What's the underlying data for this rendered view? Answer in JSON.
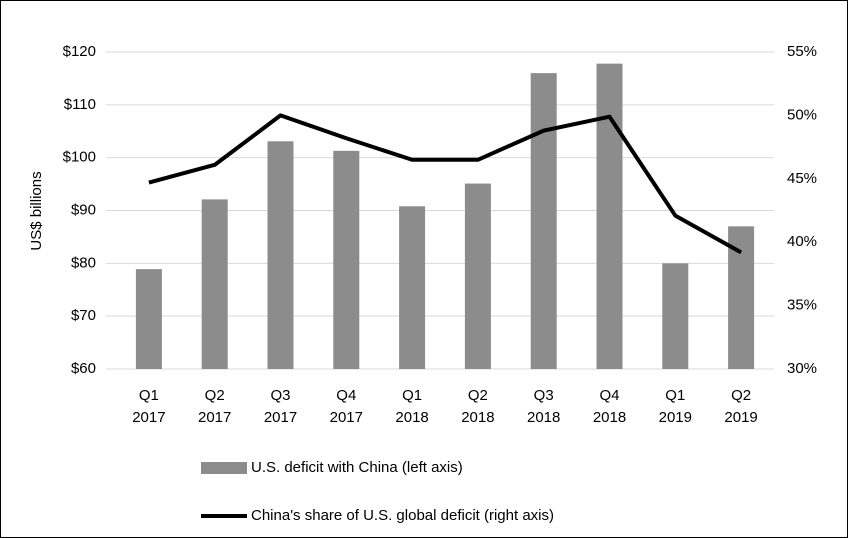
{
  "chart_data": {
    "type": "bar_line",
    "ylabel": "US$ billions",
    "categories": [
      "Q1 2017",
      "Q2 2017",
      "Q3 2017",
      "Q4 2017",
      "Q1 2018",
      "Q2 2018",
      "Q3 2018",
      "Q4 2018",
      "Q1 2019",
      "Q2 2019"
    ],
    "series": [
      {
        "name": "U.S. deficit with China (left axis)",
        "type": "bar",
        "color": "#8c8c8c",
        "values": [
          78.9,
          92.1,
          103.1,
          101.3,
          90.8,
          95.1,
          116,
          117.8,
          80,
          87
        ]
      },
      {
        "name": "China's share of U.S. global deficit (right axis)",
        "type": "line",
        "axis": "y2",
        "color": "#000000",
        "values": [
          44.7,
          46.1,
          50,
          48.2,
          46.5,
          46.5,
          48.8,
          49.9,
          42.1,
          39.2
        ]
      }
    ],
    "ylim": [
      60,
      120
    ],
    "yticks": [
      {
        "value": 60,
        "label": "$60"
      },
      {
        "value": 70,
        "label": "$70"
      },
      {
        "value": 80,
        "label": "$80"
      },
      {
        "value": 90,
        "label": "$90"
      },
      {
        "value": 100,
        "label": "$100"
      },
      {
        "value": 110,
        "label": "$110"
      },
      {
        "value": 120,
        "label": "$120"
      }
    ],
    "y2lim": [
      30,
      55
    ],
    "y2ticks": [
      {
        "value": 30,
        "label": "30%"
      },
      {
        "value": 35,
        "label": "35%"
      },
      {
        "value": 40,
        "label": "40%"
      },
      {
        "value": 45,
        "label": "45%"
      },
      {
        "value": 50,
        "label": "50%"
      },
      {
        "value": 55,
        "label": "55%"
      }
    ],
    "grid": true
  }
}
